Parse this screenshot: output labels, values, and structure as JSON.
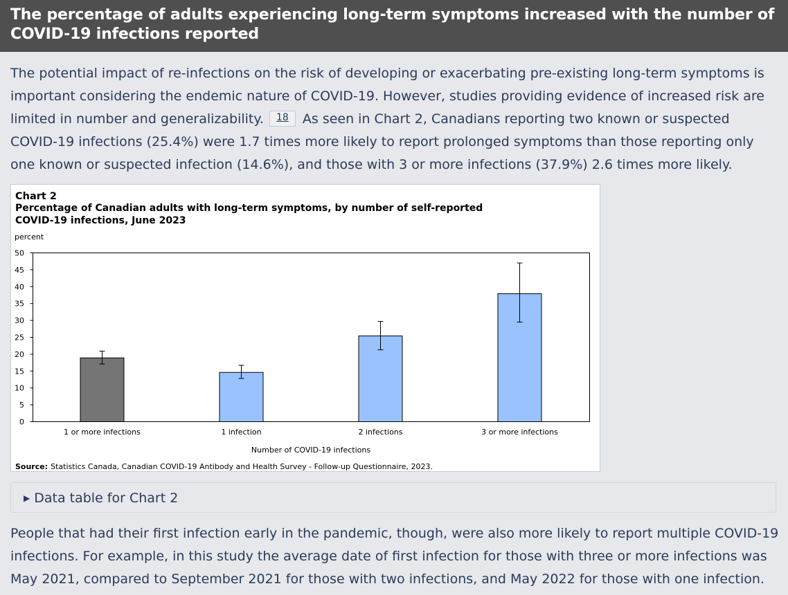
{
  "header": {
    "title": "The percentage of adults experiencing long-term symptoms increased with the number of COVID-19 infections reported"
  },
  "intro": {
    "text_a": "The potential impact of re-infections on the risk of developing or exacerbating pre-existing long-term symptoms is important considering the endemic nature of COVID-19. However, studies providing evidence of increased risk are limited in number and generalizability.",
    "footnote": "18",
    "text_b": "As seen in Chart 2, Canadians reporting two known or suspected COVID-19 infections (25.4%) were 1.7 times more likely to report prolonged symptoms than those reporting only one known or suspected infection (14.6%), and those with 3 or more infections (37.9%) 2.6 times more likely."
  },
  "chart_data": {
    "type": "bar",
    "label": "Chart 2",
    "title": "Percentage of Canadian adults with long-term symptoms, by number of self-reported COVID-19 infections, June 2023",
    "ylabel": "percent",
    "xlabel": "Number of COVID-19 infections",
    "ylim": [
      0,
      50
    ],
    "yticks": [
      "0",
      "5",
      "10",
      "15",
      "20",
      "25",
      "30",
      "35",
      "40",
      "45",
      "50"
    ],
    "grid": false,
    "categories": [
      "1 or more infections",
      "1 infection",
      "2 infections",
      "3 or more infections"
    ],
    "values": [
      18.9,
      14.6,
      25.4,
      37.9
    ],
    "error_low": [
      17.1,
      12.8,
      21.3,
      29.5
    ],
    "error_high": [
      20.9,
      16.7,
      29.7,
      47.0
    ],
    "colors": [
      "#757575",
      "#99c2ff",
      "#99c2ff",
      "#99c2ff"
    ],
    "source_label": "Source:",
    "source_text": "Statistics Canada, Canadian COVID-19 Antibody and Health Survey - Follow-up Questionnaire, 2023."
  },
  "details": {
    "label": "Data table for Chart 2"
  },
  "outro": {
    "text": "People that had their first infection early in the pandemic, though, were also more likely to report multiple COVID-19 infections. For example, in this study the average date of first infection for those with three or more infections was May 2021, compared to September 2021 for those with two infections, and May 2022 for those with one infection."
  }
}
